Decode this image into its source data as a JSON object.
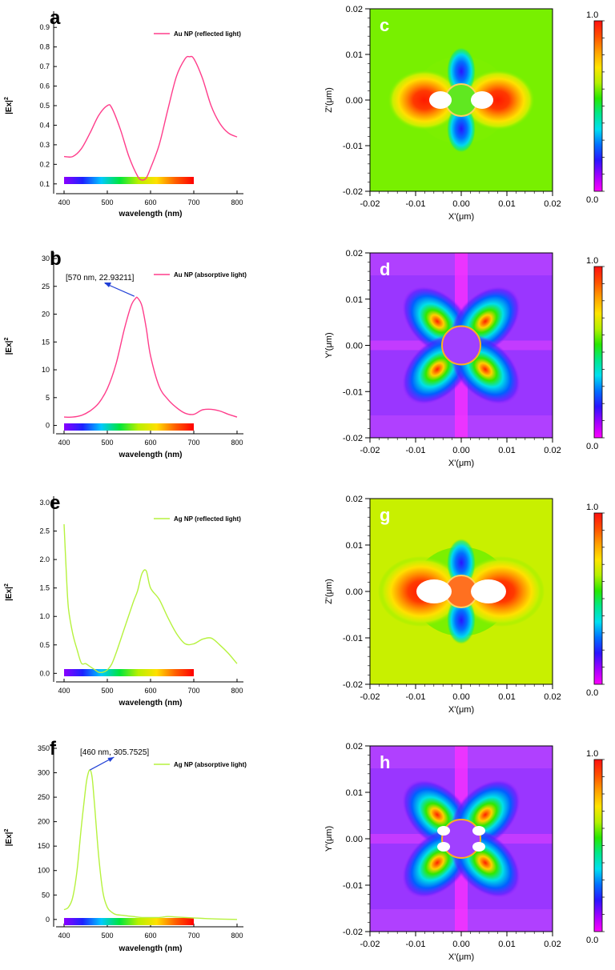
{
  "colors": {
    "au_line": "#ff3d8b",
    "ag_line": "#b6f23e",
    "annotation_arrow": "#1f3fd6",
    "spectrum": [
      "#8a00ff",
      "#1d22ff",
      "#00c8ff",
      "#00e63c",
      "#b8f000",
      "#ffe000",
      "#ff6000",
      "#ff0000"
    ],
    "colorbar": [
      "#ff1010",
      "#ff5000",
      "#ffa000",
      "#ffe400",
      "#b4f000",
      "#26e800",
      "#00e88a",
      "#00e0f0",
      "#0070ff",
      "#2a14ff",
      "#a000ff",
      "#ff00ff"
    ],
    "field_neutral_green": "#78f000",
    "field_neutral_magenta": "#c040ff",
    "field_lime": "#c8f000"
  },
  "chart_data": [
    {
      "id": "a",
      "panel_letter": "a",
      "type": "line",
      "ylabel": "|Ex|",
      "ylabel_sup": "2",
      "xlabel": "wavelength (nm)",
      "xlim": [
        400,
        800
      ],
      "xticks": [
        400,
        500,
        600,
        700,
        800
      ],
      "xtick_labels": [
        "400",
        "500",
        "600",
        "700",
        "800"
      ],
      "ylim": [
        0.05,
        0.95
      ],
      "yticks": [
        0.1,
        0.2,
        0.3,
        0.4,
        0.5,
        0.6,
        0.7,
        0.8,
        0.9
      ],
      "ytick_labels": [
        "0.1",
        "0.2",
        "0.3",
        "0.4",
        "0.5",
        "0.6",
        "0.7",
        "0.8",
        "0.9"
      ],
      "spectrum_bar_range": [
        400,
        700
      ],
      "series": [
        {
          "name": "Au NP (reflected light)",
          "color_key": "au_line",
          "x": [
            400,
            420,
            440,
            460,
            480,
            500,
            510,
            530,
            550,
            570,
            580,
            590,
            600,
            620,
            640,
            660,
            680,
            690,
            700,
            720,
            740,
            760,
            780,
            800
          ],
          "y": [
            0.24,
            0.24,
            0.28,
            0.36,
            0.45,
            0.5,
            0.49,
            0.38,
            0.24,
            0.14,
            0.12,
            0.13,
            0.18,
            0.3,
            0.48,
            0.65,
            0.74,
            0.75,
            0.74,
            0.64,
            0.5,
            0.41,
            0.36,
            0.34
          ]
        }
      ],
      "legend_position": "top-right",
      "annotation": null
    },
    {
      "id": "b",
      "panel_letter": "b",
      "type": "line",
      "ylabel": "|Ex|",
      "ylabel_sup": "2",
      "xlabel": "wavelength (nm)",
      "xlim": [
        400,
        800
      ],
      "xticks": [
        400,
        500,
        600,
        700,
        800
      ],
      "xtick_labels": [
        "400",
        "500",
        "600",
        "700",
        "800"
      ],
      "ylim": [
        -1.5,
        30
      ],
      "yticks": [
        0,
        5,
        10,
        15,
        20,
        25,
        30
      ],
      "ytick_labels": [
        "0",
        "5",
        "10",
        "15",
        "20",
        "25",
        "30"
      ],
      "spectrum_bar_range": [
        400,
        700
      ],
      "series": [
        {
          "name": "Au NP (absorptive light)",
          "color_key": "au_line",
          "x": [
            400,
            420,
            440,
            460,
            480,
            500,
            520,
            540,
            555,
            565,
            570,
            580,
            590,
            600,
            620,
            640,
            660,
            680,
            700,
            720,
            740,
            760,
            780,
            800
          ],
          "y": [
            1.5,
            1.5,
            1.8,
            2.6,
            4,
            6.6,
            11,
            17.5,
            21.5,
            22.8,
            22.93,
            21.5,
            17.5,
            12.5,
            7,
            4.7,
            3.2,
            2.2,
            2,
            2.8,
            2.9,
            2.6,
            2,
            1.5
          ]
        }
      ],
      "legend_position": "top-right",
      "annotation": {
        "text": "[570 nm, 22.93211]",
        "x": 570,
        "y": 22.93211
      }
    },
    {
      "id": "e",
      "panel_letter": "e",
      "type": "line",
      "ylabel": "|Ex|",
      "ylabel_sup": "2",
      "xlabel": "wavelength (nm)",
      "xlim": [
        400,
        800
      ],
      "xticks": [
        400,
        500,
        600,
        700,
        800
      ],
      "xtick_labels": [
        "400",
        "500",
        "600",
        "700",
        "800"
      ],
      "ylim": [
        -0.15,
        3.0
      ],
      "yticks": [
        0.0,
        0.5,
        1.0,
        1.5,
        2.0,
        2.5,
        3.0
      ],
      "ytick_labels": [
        "0.0",
        "0.5",
        "1.0",
        "1.5",
        "2.0",
        "2.5",
        "3.0"
      ],
      "spectrum_bar_range": [
        400,
        700
      ],
      "series": [
        {
          "name": "Ag NP (reflected light)",
          "color_key": "ag_line",
          "x": [
            400,
            405,
            410,
            420,
            430,
            440,
            450,
            460,
            470,
            480,
            490,
            500,
            510,
            520,
            540,
            560,
            570,
            580,
            590,
            600,
            620,
            640,
            660,
            680,
            700,
            720,
            740,
            760,
            780,
            800
          ],
          "y": [
            2.62,
            1.8,
            1.15,
            0.7,
            0.42,
            0.18,
            0.17,
            0.12,
            0.07,
            0.02,
            0.02,
            0.06,
            0.16,
            0.35,
            0.8,
            1.25,
            1.45,
            1.75,
            1.8,
            1.5,
            1.3,
            0.98,
            0.7,
            0.52,
            0.52,
            0.6,
            0.62,
            0.5,
            0.35,
            0.17
          ]
        }
      ],
      "legend_position": "top-right",
      "annotation": null
    },
    {
      "id": "f",
      "panel_letter": "f",
      "type": "line",
      "ylabel": "|Ex|",
      "ylabel_sup": "2",
      "xlabel": "wavelength (nm)",
      "xlim": [
        400,
        800
      ],
      "xticks": [
        400,
        500,
        600,
        700,
        800
      ],
      "xtick_labels": [
        "400",
        "500",
        "600",
        "700",
        "800"
      ],
      "ylim": [
        -15,
        350
      ],
      "yticks": [
        0,
        50,
        100,
        150,
        200,
        250,
        300,
        350
      ],
      "ytick_labels": [
        "0",
        "50",
        "100",
        "150",
        "200",
        "250",
        "300",
        "350"
      ],
      "spectrum_bar_range": [
        400,
        700
      ],
      "series": [
        {
          "name": "Ag NP (absorptive light)",
          "color_key": "ag_line",
          "x": [
            400,
            410,
            420,
            430,
            440,
            450,
            455,
            460,
            465,
            470,
            480,
            490,
            500,
            510,
            520,
            540,
            560,
            580,
            600,
            620,
            640,
            660,
            700,
            750,
            800
          ],
          "y": [
            20,
            25,
            45,
            100,
            190,
            270,
            296,
            305.75,
            290,
            240,
            130,
            55,
            25,
            15,
            10,
            8,
            6,
            4,
            4,
            4,
            6,
            5,
            3,
            1,
            0
          ]
        }
      ],
      "legend_position": "top-right",
      "annotation": {
        "text": "[460 nm, 305.7525]",
        "x": 460,
        "y": 305.7525
      }
    }
  ],
  "field_maps": [
    {
      "id": "c",
      "panel_letter": "c",
      "pattern": "dipole",
      "xlabel": "X'(μm)",
      "ylabel": "Z'(μm)",
      "xtick_labels": [
        "-0.02",
        "-0.01",
        "0.00",
        "0.01",
        "0.02"
      ],
      "ytick_labels": [
        "0.02",
        "0.01",
        "0.00",
        "-0.01",
        "-0.02"
      ],
      "colorbar_top": "1.0",
      "colorbar_bottom": "0.0"
    },
    {
      "id": "d",
      "panel_letter": "d",
      "pattern": "quadrupole",
      "xlabel": "X'(μm)",
      "ylabel": "Y'(μm)",
      "xtick_labels": [
        "-0.02",
        "-0.01",
        "0.00",
        "0.01",
        "0.02"
      ],
      "ytick_labels": [
        "0.02",
        "0.01",
        "0.00",
        "-0.01",
        "-0.02"
      ],
      "colorbar_top": "1.0",
      "colorbar_bottom": "0.0"
    },
    {
      "id": "g",
      "panel_letter": "g",
      "pattern": "dipole",
      "xlabel": "X'(μm)",
      "ylabel": "Z'(μm)",
      "xtick_labels": [
        "-0.02",
        "-0.01",
        "0.00",
        "0.01",
        "0.02"
      ],
      "ytick_labels": [
        "0.02",
        "0.01",
        "0.00",
        "-0.01",
        "-0.02"
      ],
      "colorbar_top": "1.0",
      "colorbar_bottom": "0.0"
    },
    {
      "id": "h",
      "panel_letter": "h",
      "pattern": "quadrupole",
      "xlabel": "X'(μm)",
      "ylabel": "Y'(μm)",
      "xtick_labels": [
        "-0.02",
        "-0.01",
        "0.00",
        "0.01",
        "0.02"
      ],
      "ytick_labels": [
        "0.02",
        "0.01",
        "0.00",
        "-0.01",
        "-0.02"
      ],
      "colorbar_top": "1.0",
      "colorbar_bottom": "0.0"
    }
  ]
}
